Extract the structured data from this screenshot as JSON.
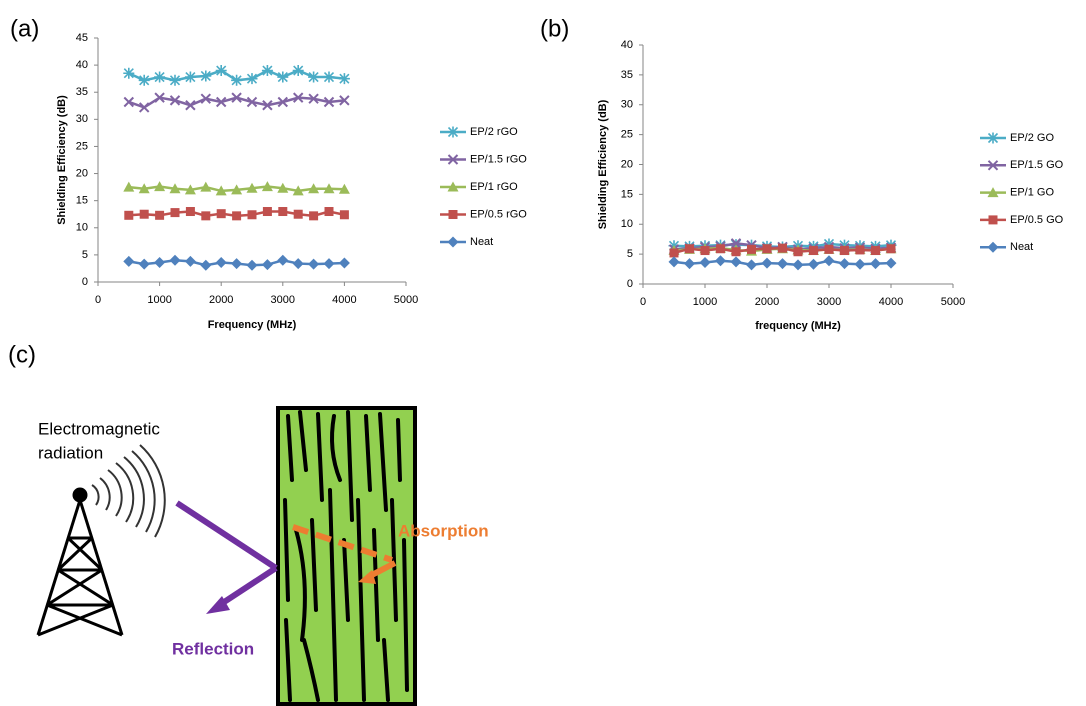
{
  "chart_data": [
    {
      "type": "line",
      "panel": "(a)",
      "y_label": "Shielding Efficiency (dB)",
      "x_label": "Frequency (MHz)",
      "x": [
        500,
        750,
        1000,
        1250,
        1500,
        1750,
        2000,
        2250,
        2500,
        2750,
        3000,
        3250,
        3500,
        3750,
        4000
      ],
      "xlim": [
        0,
        5000
      ],
      "xticks": [
        0,
        1000,
        2000,
        3000,
        4000,
        5000
      ],
      "ylim": [
        0,
        45
      ],
      "yticks": [
        0,
        5,
        10,
        15,
        20,
        25,
        30,
        35,
        40,
        45
      ],
      "grid": false,
      "legend": "right",
      "series": [
        {
          "name": "EP/2 rGO",
          "color": "#4bacc6",
          "marker": "star",
          "values": [
            38.5,
            37.2,
            37.8,
            37.2,
            37.8,
            38,
            39,
            37.2,
            37.5,
            39,
            37.8,
            39,
            37.8,
            37.8,
            37.5
          ]
        },
        {
          "name": "EP/1.5 rGO",
          "color": "#8064a2",
          "marker": "x",
          "values": [
            33.2,
            32.2,
            34,
            33.5,
            32.6,
            33.8,
            33.2,
            34,
            33.2,
            32.6,
            33.2,
            34,
            33.8,
            33.2,
            33.5
          ]
        },
        {
          "name": "EP/1 rGO",
          "color": "#9bbb59",
          "marker": "triangle",
          "values": [
            17.5,
            17.2,
            17.6,
            17.2,
            17,
            17.5,
            16.8,
            17,
            17.3,
            17.6,
            17.3,
            16.8,
            17.2,
            17.2,
            17.1
          ]
        },
        {
          "name": "EP/0.5 rGO",
          "color": "#c0504d",
          "marker": "square",
          "values": [
            12.3,
            12.5,
            12.3,
            12.8,
            13,
            12.2,
            12.6,
            12.2,
            12.4,
            13,
            13,
            12.5,
            12.2,
            13,
            12.4
          ]
        },
        {
          "name": "Neat",
          "color": "#4f81bd",
          "marker": "diamond",
          "values": [
            3.8,
            3.3,
            3.6,
            4,
            3.8,
            3.1,
            3.6,
            3.4,
            3.1,
            3.2,
            4,
            3.4,
            3.3,
            3.4,
            3.5
          ]
        }
      ]
    },
    {
      "type": "line",
      "panel": "(b)",
      "y_label": "Shielding Efficiency (dB)",
      "x_label": "frequency (MHz)",
      "x": [
        500,
        750,
        1000,
        1250,
        1500,
        1750,
        2000,
        2250,
        2500,
        2750,
        3000,
        3250,
        3500,
        3750,
        4000
      ],
      "xlim": [
        0,
        5000
      ],
      "xticks": [
        0,
        1000,
        2000,
        3000,
        4000,
        5000
      ],
      "ylim": [
        0,
        40
      ],
      "yticks": [
        0,
        5,
        10,
        15,
        20,
        25,
        30,
        35,
        40
      ],
      "grid": false,
      "legend": "right",
      "series": [
        {
          "name": "EP/2 GO",
          "color": "#4bacc6",
          "marker": "star",
          "values": [
            6.4,
            6.3,
            6.4,
            6.5,
            6.6,
            6.5,
            6.3,
            6.2,
            6.4,
            6.3,
            6.7,
            6.5,
            6.4,
            6.3,
            6.5
          ]
        },
        {
          "name": "EP/1.5 GO",
          "color": "#8064a2",
          "marker": "x",
          "values": [
            5.8,
            6.0,
            6.2,
            6.3,
            6.8,
            6.5,
            6.0,
            6.2,
            5.8,
            6.0,
            6.2,
            6.0,
            6.1,
            5.9,
            6.1
          ]
        },
        {
          "name": "EP/1 GO",
          "color": "#9bbb59",
          "marker": "triangle",
          "values": [
            5.6,
            5.8,
            5.9,
            6.0,
            5.7,
            5.5,
            5.8,
            5.9,
            5.7,
            5.6,
            5.8,
            5.7,
            5.8,
            5.6,
            5.9
          ]
        },
        {
          "name": "EP/0.5 GO",
          "color": "#c0504d",
          "marker": "square",
          "values": [
            5.2,
            5.9,
            5.6,
            5.9,
            5.4,
            5.8,
            5.9,
            6.0,
            5.4,
            5.6,
            5.8,
            5.6,
            5.7,
            5.6,
            5.9
          ]
        },
        {
          "name": "Neat",
          "color": "#4f81bd",
          "marker": "diamond",
          "values": [
            3.7,
            3.4,
            3.6,
            3.9,
            3.7,
            3.2,
            3.5,
            3.4,
            3.2,
            3.3,
            3.9,
            3.4,
            3.3,
            3.4,
            3.5
          ]
        }
      ]
    }
  ],
  "diagram": {
    "panel": "(c)",
    "source_label_line1": "Electromagnetic",
    "source_label_line2": "radiation",
    "absorption_label": "Absorption",
    "reflection_label": "Reflection"
  }
}
